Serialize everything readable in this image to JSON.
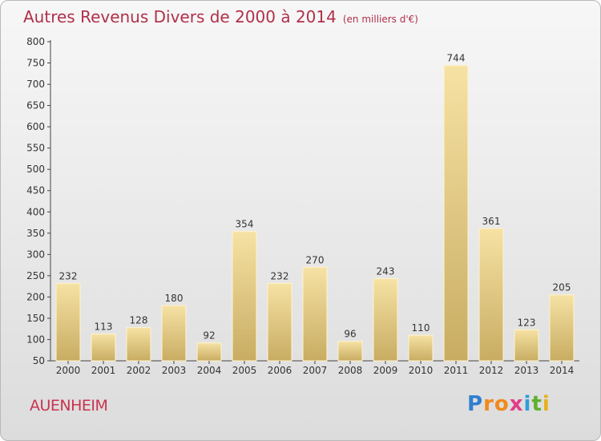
{
  "title": "Autres Revenus Divers de 2000 à 2014",
  "subtitle": "(en milliers d'€)",
  "city": "AUENHEIM",
  "brand": {
    "letters": [
      "P",
      "r",
      "o",
      "x",
      "i",
      "t",
      "i"
    ],
    "colors": [
      "#2f7fd0",
      "#f08a1c",
      "#f08a1c",
      "#e23c8a",
      "#2f9fd8",
      "#5fb030",
      "#e8b020"
    ]
  },
  "colors": {
    "title": "#b0304a",
    "bar_top": "#f6e2a4",
    "bar_bottom": "#c8ac62",
    "label": "#333333"
  },
  "chart_data": {
    "type": "bar",
    "title": "Autres Revenus Divers de 2000 à 2014",
    "subtitle": "(en milliers d'€)",
    "xlabel": "",
    "ylabel": "",
    "categories": [
      "2000",
      "2001",
      "2002",
      "2003",
      "2004",
      "2005",
      "2006",
      "2007",
      "2008",
      "2009",
      "2010",
      "2011",
      "2012",
      "2013",
      "2014"
    ],
    "values": [
      232,
      113,
      128,
      180,
      92,
      354,
      232,
      270,
      96,
      243,
      110,
      744,
      361,
      123,
      205
    ],
    "ylim": [
      50,
      800
    ],
    "yticks": [
      50,
      100,
      150,
      200,
      250,
      300,
      350,
      400,
      450,
      500,
      550,
      600,
      650,
      700,
      750,
      800
    ],
    "grid": false,
    "legend": "none"
  }
}
